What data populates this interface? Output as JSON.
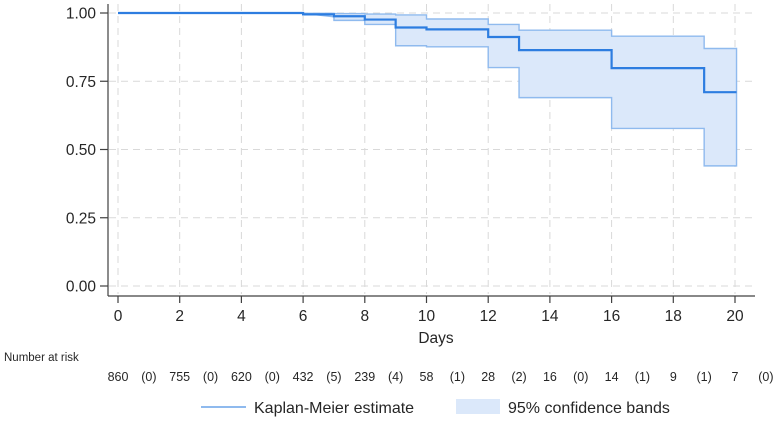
{
  "chart_data": {
    "type": "line",
    "variant": "kaplan-meier-survival-with-confidence-band",
    "title": "",
    "xlabel": "Days",
    "ylabel": "",
    "xlim": [
      0,
      20
    ],
    "ylim": [
      0.0,
      1.0
    ],
    "x_ticks": [
      "0",
      "2",
      "4",
      "6",
      "8",
      "10",
      "12",
      "14",
      "16",
      "18",
      "20"
    ],
    "x_tick_values": [
      0,
      2,
      4,
      6,
      8,
      10,
      12,
      14,
      16,
      18,
      20
    ],
    "y_ticks": [
      "0.00",
      "0.25",
      "0.50",
      "0.75",
      "1.00"
    ],
    "y_tick_values": [
      0.0,
      0.25,
      0.5,
      0.75,
      1.0
    ],
    "grid": "dashed-both-directions",
    "legend_position": "bottom",
    "series": [
      {
        "name": "Kaplan-Meier estimate",
        "type": "step",
        "end_t": 20.05,
        "points": [
          {
            "t": 0,
            "est": 1.0,
            "lo": 1.0,
            "hi": 1.0
          },
          {
            "t": 6,
            "est": 0.995,
            "lo": 0.986,
            "hi": 0.999
          },
          {
            "t": 7,
            "est": 0.988,
            "lo": 0.973,
            "hi": 0.998
          },
          {
            "t": 8,
            "est": 0.976,
            "lo": 0.958,
            "hi": 0.996
          },
          {
            "t": 9,
            "est": 0.947,
            "lo": 0.88,
            "hi": 0.993
          },
          {
            "t": 10,
            "est": 0.94,
            "lo": 0.876,
            "hi": 0.978
          },
          {
            "t": 12,
            "est": 0.912,
            "lo": 0.8,
            "hi": 0.958
          },
          {
            "t": 13,
            "est": 0.864,
            "lo": 0.69,
            "hi": 0.937
          },
          {
            "t": 16,
            "est": 0.798,
            "lo": 0.577,
            "hi": 0.915
          },
          {
            "t": 19,
            "est": 0.71,
            "lo": 0.44,
            "hi": 0.87
          }
        ]
      },
      {
        "name": "95% confidence bands",
        "type": "band",
        "derived_from": "lo/hi columns of series 0"
      }
    ]
  },
  "risk_table": {
    "label": "Number at risk",
    "columns": [
      {
        "time": 0,
        "n": "860",
        "censored": "(0)"
      },
      {
        "time": 2,
        "n": "755",
        "censored": "(0)"
      },
      {
        "time": 4,
        "n": "620",
        "censored": "(0)"
      },
      {
        "time": 6,
        "n": "432",
        "censored": "(5)"
      },
      {
        "time": 8,
        "n": "239",
        "censored": "(4)"
      },
      {
        "time": 10,
        "n": "58",
        "censored": "(1)"
      },
      {
        "time": 12,
        "n": "28",
        "censored": "(2)"
      },
      {
        "time": 14,
        "n": "16",
        "censored": "(0)"
      },
      {
        "time": 16,
        "n": "14",
        "censored": "(1)"
      },
      {
        "time": 18,
        "n": "9",
        "censored": "(1)"
      },
      {
        "time": 20,
        "n": "7",
        "censored": "(0)"
      }
    ]
  },
  "legend": {
    "items": [
      {
        "label": "Kaplan-Meier estimate",
        "swatch": "line"
      },
      {
        "label": "95% confidence bands",
        "swatch": "rect"
      }
    ]
  },
  "colors": {
    "km_line": "#2d7de0",
    "band_fill": "#dbe8fa",
    "band_edge": "#8fbaee",
    "grid": "#d9d9d9",
    "axis": "#404040",
    "text": "#262626"
  }
}
